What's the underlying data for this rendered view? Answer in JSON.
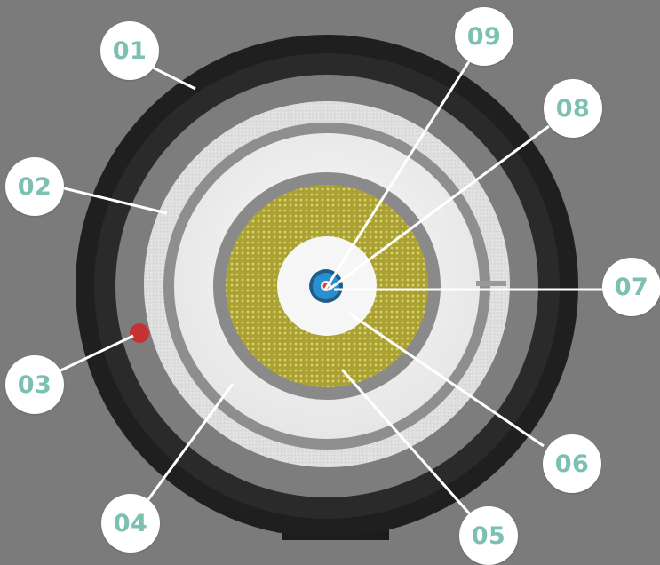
{
  "colors": {
    "background": "#7b7b7b",
    "outer_sheath": "#222222",
    "insulation": "#e2e2e2",
    "dielectric": "#f2f2f2",
    "shield_mesh": "#b7ae3a",
    "core_disc": "#f7f7f7",
    "conductor": "#2a8fd0",
    "core_dot": "#e23b3b",
    "marker": "#c63232",
    "callout_text": "#7cc0b2",
    "callout_bg": "#ffffff",
    "leader": "#ffffff"
  },
  "callouts": [
    {
      "label": "01",
      "name": "outer-jacket"
    },
    {
      "label": "02",
      "name": "insulation-layer"
    },
    {
      "label": "03",
      "name": "marker-dot"
    },
    {
      "label": "04",
      "name": "dielectric-layer"
    },
    {
      "label": "05",
      "name": "braided-shield"
    },
    {
      "label": "06",
      "name": "inner-insulation"
    },
    {
      "label": "07",
      "name": "conductor"
    },
    {
      "label": "08",
      "name": "conductor-coating"
    },
    {
      "label": "09",
      "name": "core"
    }
  ]
}
